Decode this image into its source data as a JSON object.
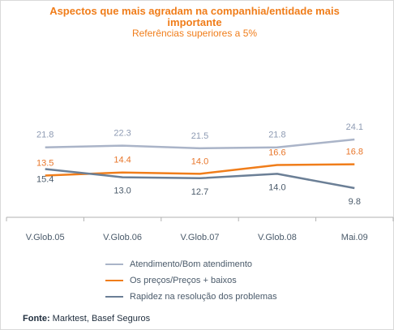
{
  "chart_data": {
    "type": "line",
    "title": "Aspectos que mais agradam na companhia/entidade mais importante",
    "subtitle": "Referências superiores a 5%",
    "categories": [
      "V.Glob.05",
      "V.Glob.06",
      "V.Glob.07",
      "V.Glob.08",
      "Mai.09"
    ],
    "series": [
      {
        "name": "Atendimento/Bom atendimento",
        "values": [
          21.8,
          22.3,
          21.5,
          21.8,
          24.1
        ],
        "labels": [
          "21.8",
          "22.3",
          "21.5",
          "21.8",
          "24.1"
        ],
        "color": "#aab4c8",
        "label_color": "#8e9bb3"
      },
      {
        "name": "Os preços/Preços + baixos",
        "values": [
          13.5,
          14.4,
          14.0,
          16.6,
          16.8
        ],
        "labels": [
          "13.5",
          "14.4",
          "14.0",
          "16.6",
          "16.8"
        ],
        "color": "#f07d1a",
        "label_color": "#e8762a"
      },
      {
        "name": "Rapidez na resolução dos problemas",
        "values": [
          15.4,
          13.0,
          12.7,
          14.0,
          9.8
        ],
        "labels": [
          "15.4",
          "13.0",
          "12.7",
          "14.0",
          "9.8"
        ],
        "color": "#6b7f96",
        "label_color": "#4a5a6a"
      }
    ],
    "grid": false,
    "legend_position": "bottom"
  },
  "source": {
    "label": "Fonte:",
    "text": " Marktest, Basef Seguros"
  }
}
